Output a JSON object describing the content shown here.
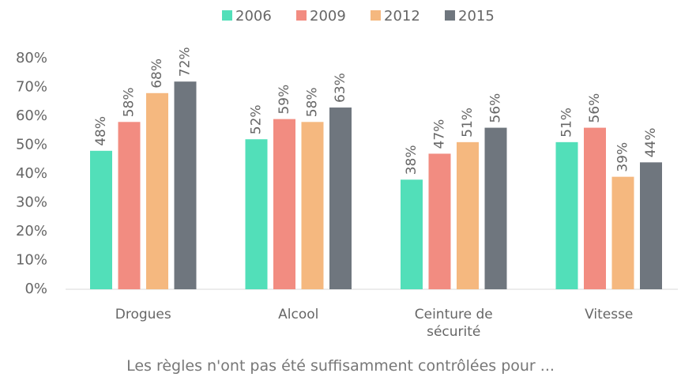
{
  "chart_data": {
    "type": "bar",
    "x_label": "Les règles n'ont pas été suffisamment contrôlées pour ...",
    "categories": [
      "Drogues",
      "Alcool",
      "Ceinture de sécurité",
      "Vitesse"
    ],
    "series": [
      {
        "name": "2006",
        "color": "#52dfb9",
        "values": [
          48,
          52,
          38,
          51
        ],
        "value_labels": [
          "48%",
          "52%",
          "38%",
          "51%"
        ]
      },
      {
        "name": "2009",
        "color": "#f28c81",
        "values": [
          58,
          59,
          47,
          56
        ],
        "value_labels": [
          "58%",
          "59%",
          "47%",
          "56%"
        ]
      },
      {
        "name": "2012",
        "color": "#f5b87f",
        "values": [
          68,
          58,
          51,
          39
        ],
        "value_labels": [
          "68%",
          "58%",
          "51%",
          "39%"
        ]
      },
      {
        "name": "2015",
        "color": "#6f767e",
        "values": [
          72,
          63,
          56,
          44
        ],
        "value_labels": [
          "72%",
          "63%",
          "56%",
          "44%"
        ]
      }
    ],
    "ylim": [
      0,
      80
    ],
    "yticks": [
      {
        "value": 0,
        "label": "0%"
      },
      {
        "value": 10,
        "label": "10%"
      },
      {
        "value": 20,
        "label": "20%"
      },
      {
        "value": 30,
        "label": "30%"
      },
      {
        "value": 40,
        "label": "40%"
      },
      {
        "value": 50,
        "label": "50%"
      },
      {
        "value": 60,
        "label": "60%"
      },
      {
        "value": 70,
        "label": "70%"
      },
      {
        "value": 80,
        "label": "80%"
      }
    ],
    "legend": "top"
  }
}
